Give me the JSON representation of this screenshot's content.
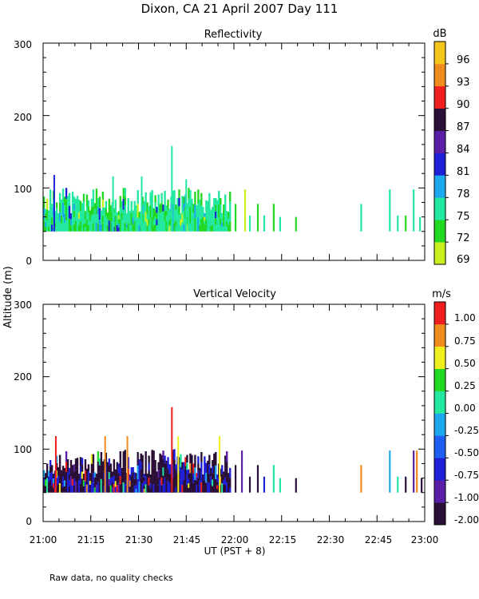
{
  "title": "Dixon, CA 21 April 2007  Day 111",
  "footer_note": "Raw data, no quality checks",
  "shared_ylabel": "Altitude (m)",
  "colors": {
    "dark": "#2a0f36",
    "purple": "#5a1ea8",
    "blue": "#1f1fd8",
    "lightblue": "#1ea8f0",
    "teal": "#22e8a0",
    "green": "#22d822",
    "yellowgreen": "#c8f01e",
    "yellow": "#f0f01e",
    "orange": "#f08c1e",
    "red": "#f01e1e",
    "gold": "#f5c41a"
  },
  "chart_data": [
    {
      "type": "heatmap",
      "title": "Reflectivity",
      "xlabel": "UT  (PST + 8)",
      "ylabel": "Altitude (m)",
      "xlim": [
        0,
        120
      ],
      "x_unit": "minutes after 21:00",
      "ylim": [
        0,
        300
      ],
      "yticks": [
        0,
        100,
        200,
        300
      ],
      "xtick_labels": [
        "21:00",
        "21:15",
        "21:30",
        "21:45",
        "22:00",
        "22:15",
        "22:30",
        "22:45",
        "23:00"
      ],
      "colorbar": {
        "unit": "dB",
        "labels": [
          "69",
          "72",
          "75",
          "78",
          "81",
          "84",
          "87",
          "90",
          "93",
          "96"
        ],
        "colors": [
          "#c8f01e",
          "#22d822",
          "#22e8a0",
          "#1ea8f0",
          "#1f1fd8",
          "#5a1ea8",
          "#2a0f36",
          "#f01e1e",
          "#f08c1e",
          "#f5c41a"
        ]
      },
      "base_layer": {
        "x_start": 0,
        "x_end": 59,
        "y_low": 40,
        "y_high": 100,
        "dominant": "teal",
        "secondary": "green"
      },
      "spikes": [
        {
          "x": 40.5,
          "top": 158,
          "color": "teal"
        },
        {
          "x": 3.5,
          "top": 118,
          "color": "blue"
        },
        {
          "x": 22,
          "top": 116,
          "color": "teal"
        },
        {
          "x": 31,
          "top": 116,
          "color": "teal"
        },
        {
          "x": 45,
          "top": 112,
          "color": "teal"
        }
      ],
      "sparse_columns": [
        {
          "x": 60.5,
          "top": 78,
          "color": "green"
        },
        {
          "x": 63.5,
          "top": 98,
          "color": "yellowgreen"
        },
        {
          "x": 65,
          "top": 62,
          "color": "teal"
        },
        {
          "x": 67.5,
          "top": 78,
          "color": "green"
        },
        {
          "x": 69.5,
          "top": 62,
          "color": "teal"
        },
        {
          "x": 72.5,
          "top": 78,
          "color": "green"
        },
        {
          "x": 74.5,
          "top": 60,
          "color": "teal"
        },
        {
          "x": 79.5,
          "top": 60,
          "color": "green"
        },
        {
          "x": 100,
          "top": 78,
          "color": "teal"
        },
        {
          "x": 109,
          "top": 98,
          "color": "teal"
        },
        {
          "x": 111.5,
          "top": 62,
          "color": "teal"
        },
        {
          "x": 114,
          "top": 62,
          "color": "green"
        },
        {
          "x": 116.5,
          "top": 98,
          "color": "teal"
        },
        {
          "x": 118.5,
          "top": 60,
          "color": "teal"
        }
      ]
    },
    {
      "type": "heatmap",
      "title": "Vertical Velocity",
      "xlabel": "UT  (PST + 8)",
      "ylabel": "Altitude (m)",
      "xlim": [
        0,
        120
      ],
      "x_unit": "minutes after 21:00",
      "ylim": [
        0,
        300
      ],
      "yticks": [
        0,
        100,
        200,
        300
      ],
      "xtick_labels": [
        "21:00",
        "21:15",
        "21:30",
        "21:45",
        "22:00",
        "22:15",
        "22:30",
        "22:45",
        "23:00"
      ],
      "colorbar": {
        "unit": "m/s",
        "labels": [
          "-2.00",
          "-1.00",
          "-0.75",
          "-0.50",
          "-0.25",
          "0.00",
          "0.25",
          "0.50",
          "0.75",
          "1.00"
        ],
        "colors": [
          "#2a0f36",
          "#5a1ea8",
          "#1f1fd8",
          "#1e5ef0",
          "#1ea8f0",
          "#22e8a0",
          "#22d822",
          "#f0f01e",
          "#f08c1e",
          "#f01e1e"
        ]
      },
      "base_layer": {
        "x_start": 0,
        "x_end": 59,
        "y_low": 40,
        "y_high": 100,
        "dominant": "dark",
        "secondary": "blue"
      },
      "spikes": [
        {
          "x": 40.5,
          "top": 158,
          "color": "red"
        },
        {
          "x": 4,
          "top": 118,
          "color": "red"
        },
        {
          "x": 19.5,
          "top": 118,
          "color": "orange"
        },
        {
          "x": 26.5,
          "top": 118,
          "color": "orange"
        },
        {
          "x": 42.5,
          "top": 118,
          "color": "yellow"
        },
        {
          "x": 55.5,
          "top": 118,
          "color": "yellow"
        }
      ],
      "sparse_columns": [
        {
          "x": 60.5,
          "top": 78,
          "color": "dark"
        },
        {
          "x": 62.5,
          "top": 98,
          "color": "purple"
        },
        {
          "x": 65,
          "top": 62,
          "color": "dark"
        },
        {
          "x": 67.5,
          "top": 78,
          "color": "dark"
        },
        {
          "x": 69.5,
          "top": 62,
          "color": "blue"
        },
        {
          "x": 72.5,
          "top": 78,
          "color": "teal"
        },
        {
          "x": 74.5,
          "top": 60,
          "color": "teal"
        },
        {
          "x": 79.5,
          "top": 60,
          "color": "dark"
        },
        {
          "x": 100,
          "top": 78,
          "color": "orange"
        },
        {
          "x": 109,
          "top": 98,
          "color": "lightblue"
        },
        {
          "x": 111.5,
          "top": 62,
          "color": "teal"
        },
        {
          "x": 114,
          "top": 62,
          "color": "dark"
        },
        {
          "x": 116.5,
          "top": 98,
          "color": "purple"
        },
        {
          "x": 117.5,
          "top": 98,
          "color": "orange"
        },
        {
          "x": 119,
          "top": 60,
          "color": "dark"
        }
      ]
    }
  ]
}
